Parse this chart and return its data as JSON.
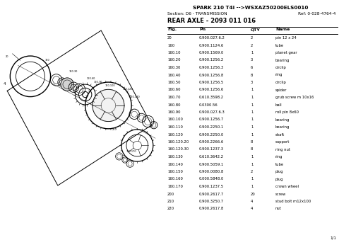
{
  "title": "SPARK 210 T4i -->WSXAZ50200ELS0010",
  "section": "Section: D6 - TRANSMISSION",
  "ref": "Ref: 0-028-4764-4",
  "part_title": "REAR AXLE - 2093 011 016",
  "columns": [
    "Fig.",
    "Pn",
    "QTY",
    "Name"
  ],
  "rows": [
    [
      "20",
      "0.900.027.6.2",
      "2",
      "pin 12 x 24"
    ],
    [
      "160",
      "0.900.1124.6",
      "2",
      "tube"
    ],
    [
      "160.10",
      "0.900.1569.0",
      "1",
      "planet gear"
    ],
    [
      "160.20",
      "0.900.1256.2",
      "3",
      "bearing"
    ],
    [
      "160.30",
      "0.900.1256.3",
      "6",
      "circlip"
    ],
    [
      "160.40",
      "0.900.1256.8",
      "8",
      "ring"
    ],
    [
      "160.50",
      "0.900.1256.5",
      "3",
      "circlip"
    ],
    [
      "160.60",
      "0.900.1256.6",
      "1",
      "spider"
    ],
    [
      "160.70",
      "0.610.3598.2",
      "1",
      "grub screw m 10x16"
    ],
    [
      "160.80",
      "0.0300.56",
      "1",
      "ball"
    ],
    [
      "160.90",
      "0.900.027.6.3",
      "1",
      "roll pin 8x60"
    ],
    [
      "160.100",
      "0.900.1256.7",
      "1",
      "bearing"
    ],
    [
      "160.110",
      "0.900.2250.1",
      "1",
      "bearing"
    ],
    [
      "160.120",
      "0.900.2250.0",
      "1",
      "shaft"
    ],
    [
      "160.120.20",
      "0.900.2266.6",
      "8",
      "support"
    ],
    [
      "160.120.30",
      "0.900.1237.3",
      "8",
      "ring nut"
    ],
    [
      "160.130",
      "0.610.3642.2",
      "1",
      "ring"
    ],
    [
      "160.140",
      "0.900.5059.1",
      "1",
      "tube"
    ],
    [
      "160.150",
      "0.900.0080.8",
      "2",
      "plug"
    ],
    [
      "160.160",
      "0.000.5848.0",
      "1",
      "plug"
    ],
    [
      "160.170",
      "0.900.1237.5",
      "1",
      "crown wheel"
    ],
    [
      "200",
      "0.900.2617.7",
      "20",
      "screw"
    ],
    [
      "210",
      "0.900.3250.7",
      "4",
      "stud bolt m12x100"
    ],
    [
      "220",
      "0.900.2617.8",
      "4",
      "nut"
    ]
  ],
  "page_num": "1/1",
  "bg_color": "#ffffff",
  "text_color": "#000000"
}
